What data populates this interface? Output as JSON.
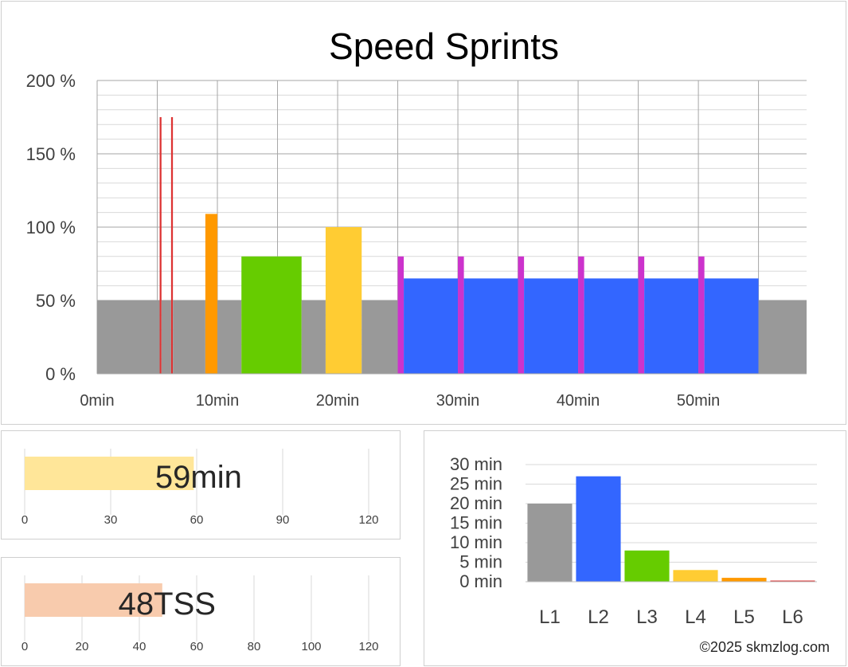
{
  "colors": {
    "grid": "#bfbfbf",
    "bars": {
      "L1": "#999999",
      "L2": "#3366ff",
      "L3": "#66cc00",
      "L4": "#ffcc33",
      "L5": "#ff9900",
      "L6": "#dd3333",
      "L7": "#cc33cc"
    },
    "duration_bar": "#ffe699",
    "tss_bar": "#f8cbad",
    "text": "#404040"
  },
  "chart_data": [
    {
      "id": "workout-profile",
      "type": "bar",
      "title": "Speed Sprints",
      "xlabel": "",
      "ylabel": "",
      "xlim": [
        0,
        59
      ],
      "ylim": [
        0,
        200
      ],
      "x_ticks": [
        0,
        10,
        20,
        30,
        40,
        50
      ],
      "x_tick_labels": [
        "0min",
        "10min",
        "20min",
        "30min",
        "40min",
        "50min"
      ],
      "y_ticks": [
        0,
        50,
        100,
        150,
        200
      ],
      "y_tick_labels": [
        "0 %",
        "50 %",
        "100 %",
        "150 %",
        "200 %"
      ],
      "grid": true,
      "segments": [
        {
          "start": 0,
          "end": 5.2,
          "value": 50,
          "zone": "L1"
        },
        {
          "start": 5.2,
          "end": 5.35,
          "value": 175,
          "zone": "L6"
        },
        {
          "start": 5.35,
          "end": 6.15,
          "value": 50,
          "zone": "L1"
        },
        {
          "start": 6.15,
          "end": 6.3,
          "value": 175,
          "zone": "L6"
        },
        {
          "start": 6.3,
          "end": 9.0,
          "value": 50,
          "zone": "L1"
        },
        {
          "start": 9.0,
          "end": 10.0,
          "value": 109,
          "zone": "L5"
        },
        {
          "start": 10.0,
          "end": 12.0,
          "value": 50,
          "zone": "L1"
        },
        {
          "start": 12.0,
          "end": 17.0,
          "value": 80,
          "zone": "L3"
        },
        {
          "start": 17.0,
          "end": 19.0,
          "value": 50,
          "zone": "L1"
        },
        {
          "start": 19.0,
          "end": 22.0,
          "value": 100,
          "zone": "L4"
        },
        {
          "start": 22.0,
          "end": 25.0,
          "value": 50,
          "zone": "L1"
        },
        {
          "start": 25.0,
          "end": 25.5,
          "value": 80,
          "zone": "L7"
        },
        {
          "start": 25.5,
          "end": 30.0,
          "value": 65,
          "zone": "L2"
        },
        {
          "start": 30.0,
          "end": 30.5,
          "value": 80,
          "zone": "L7"
        },
        {
          "start": 30.5,
          "end": 35.0,
          "value": 65,
          "zone": "L2"
        },
        {
          "start": 35.0,
          "end": 35.5,
          "value": 80,
          "zone": "L7"
        },
        {
          "start": 35.5,
          "end": 40.0,
          "value": 65,
          "zone": "L2"
        },
        {
          "start": 40.0,
          "end": 40.5,
          "value": 80,
          "zone": "L7"
        },
        {
          "start": 40.5,
          "end": 45.0,
          "value": 65,
          "zone": "L2"
        },
        {
          "start": 45.0,
          "end": 45.5,
          "value": 80,
          "zone": "L7"
        },
        {
          "start": 45.5,
          "end": 50.0,
          "value": 65,
          "zone": "L2"
        },
        {
          "start": 50.0,
          "end": 50.5,
          "value": 80,
          "zone": "L7"
        },
        {
          "start": 50.5,
          "end": 55.0,
          "value": 65,
          "zone": "L2"
        },
        {
          "start": 55.0,
          "end": 59.0,
          "value": 50,
          "zone": "L1"
        }
      ]
    },
    {
      "id": "duration-bar",
      "type": "bar",
      "orientation": "horizontal",
      "value": 59,
      "value_label": "59min",
      "xlim": [
        0,
        120
      ],
      "x_ticks": [
        0,
        30,
        60,
        90,
        120
      ],
      "x_tick_labels": [
        "0",
        "30",
        "60",
        "90",
        "120"
      ]
    },
    {
      "id": "tss-bar",
      "type": "bar",
      "orientation": "horizontal",
      "value": 48,
      "value_label": "48TSS",
      "xlim": [
        0,
        120
      ],
      "x_ticks": [
        0,
        20,
        40,
        60,
        80,
        100,
        120
      ],
      "x_tick_labels": [
        "0",
        "20",
        "40",
        "60",
        "80",
        "100",
        "120"
      ]
    },
    {
      "id": "zone-distribution",
      "type": "bar",
      "categories": [
        "L1",
        "L2",
        "L3",
        "L4",
        "L5",
        "L6"
      ],
      "values": [
        20,
        27,
        8,
        3,
        1,
        0.3
      ],
      "ylim": [
        0,
        30
      ],
      "y_ticks": [
        0,
        5,
        10,
        15,
        20,
        25,
        30
      ],
      "y_tick_labels": [
        "0 min",
        "5 min",
        "10 min",
        "15 min",
        "20 min",
        "25 min",
        "30 min"
      ],
      "grid": true
    }
  ],
  "footer": {
    "copyright": "©2025 skmzlog.com"
  }
}
